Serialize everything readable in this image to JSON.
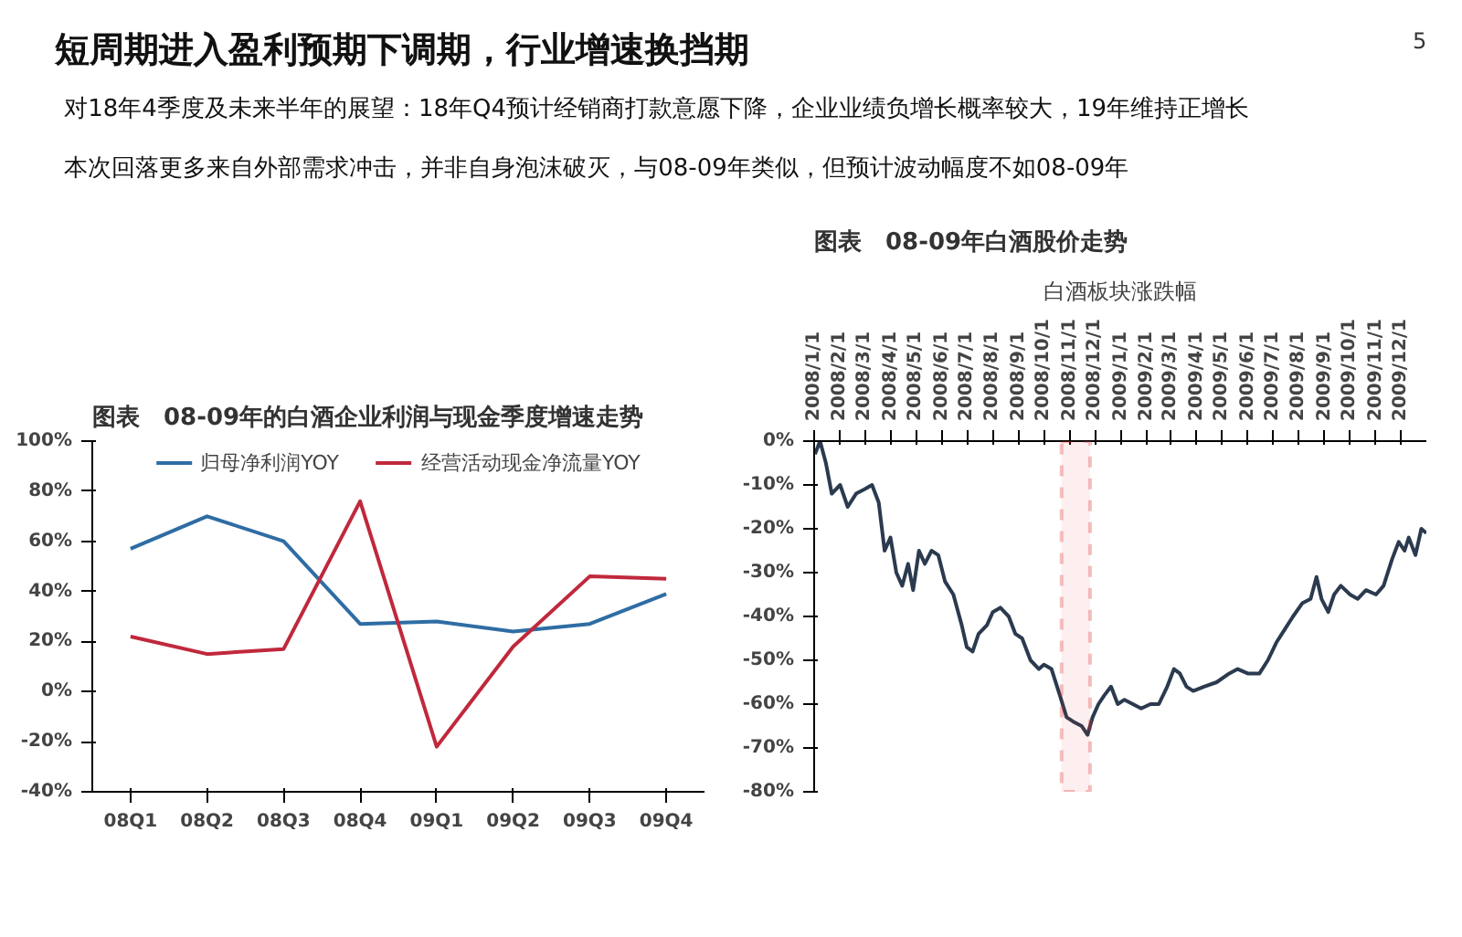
{
  "chart_data": [
    {
      "type": "other",
      "title": "短周期进入盈利预期下调期，行业增速换挡期",
      "annotations": [
        "对18年4季度及未来半年的展望：18年Q4预计经销商打款意愿下降，企业业绩负增长概率较大，19年维持正增长",
        "本次回落更多来自外部需求冲击，并非自身泡沫破灭，与08-09年类似，但预计波动幅度不如08-09年",
        "5"
      ]
    },
    {
      "type": "line",
      "title": "图表　08-09年的白酒企业利润与现金季度增速走势",
      "categories": [
        "08Q1",
        "08Q2",
        "08Q3",
        "08Q4",
        "09Q1",
        "09Q2",
        "09Q3",
        "09Q4"
      ],
      "series": [
        {
          "name": "归母净利润YOY",
          "color": "#2e6da4",
          "values": [
            57,
            70,
            60,
            27,
            28,
            24,
            27,
            39
          ]
        },
        {
          "name": "经营活动现金净流量YOY",
          "color": "#c0283c",
          "values": [
            22,
            15,
            17,
            76,
            -22,
            18,
            46,
            45
          ]
        }
      ],
      "ylim": [
        -40,
        100
      ],
      "yticks": [
        {
          "value": -40,
          "label": "-40%"
        },
        {
          "value": -20,
          "label": "-20%"
        },
        {
          "value": 0,
          "label": "0%"
        },
        {
          "value": 20,
          "label": "20%"
        },
        {
          "value": 40,
          "label": "40%"
        },
        {
          "value": 60,
          "label": "60%"
        },
        {
          "value": 80,
          "label": "80%"
        },
        {
          "value": 100,
          "label": "100%"
        }
      ],
      "legend": "top",
      "grid": false,
      "marker": "none",
      "line_style": "solid"
    },
    {
      "type": "line",
      "title": "图表　08-09年白酒股价走势",
      "subtitle": "白酒板块涨跌幅",
      "x": [
        "2008-01-02",
        "2008-01-08",
        "2008-01-15",
        "2008-01-22",
        "2008-02-01",
        "2008-02-10",
        "2008-02-20",
        "2008-03-01",
        "2008-03-10",
        "2008-03-18",
        "2008-03-25",
        "2008-04-01",
        "2008-04-08",
        "2008-04-15",
        "2008-04-22",
        "2008-04-28",
        "2008-05-05",
        "2008-05-12",
        "2008-05-20",
        "2008-05-28",
        "2008-06-05",
        "2008-06-15",
        "2008-06-25",
        "2008-07-01",
        "2008-07-08",
        "2008-07-15",
        "2008-07-25",
        "2008-08-01",
        "2008-08-10",
        "2008-08-20",
        "2008-08-28",
        "2008-09-05",
        "2008-09-15",
        "2008-09-25",
        "2008-10-01",
        "2008-10-10",
        "2008-10-20",
        "2008-10-28",
        "2008-11-05",
        "2008-11-15",
        "2008-11-22",
        "2008-11-28",
        "2008-12-05",
        "2008-12-12",
        "2008-12-20",
        "2008-12-28",
        "2009-01-05",
        "2009-01-15",
        "2009-01-25",
        "2009-02-05",
        "2009-02-15",
        "2009-02-25",
        "2009-03-05",
        "2009-03-12",
        "2009-03-20",
        "2009-03-28",
        "2009-04-10",
        "2009-04-25",
        "2009-05-10",
        "2009-05-20",
        "2009-06-01",
        "2009-06-15",
        "2009-06-25",
        "2009-07-05",
        "2009-07-15",
        "2009-07-25",
        "2009-08-05",
        "2009-08-15",
        "2009-08-22",
        "2009-08-28",
        "2009-09-05",
        "2009-09-12",
        "2009-09-20",
        "2009-10-01",
        "2009-10-10",
        "2009-10-20",
        "2009-11-01",
        "2009-11-10",
        "2009-11-20",
        "2009-11-28",
        "2009-12-05",
        "2009-12-10",
        "2009-12-18",
        "2009-12-25",
        "2009-12-31"
      ],
      "series": [
        {
          "color": "#2b3a4e",
          "values": [
            -3,
            0,
            -5,
            -12,
            -10,
            -15,
            -12,
            -11,
            -10,
            -14,
            -25,
            -22,
            -30,
            -33,
            -28,
            -34,
            -25,
            -28,
            -25,
            -26,
            -32,
            -35,
            -42,
            -47,
            -48,
            -44,
            -42,
            -39,
            -38,
            -40,
            -44,
            -45,
            -50,
            -52,
            -51,
            -52,
            -58,
            -63,
            -64,
            -65,
            -67,
            -63,
            -60,
            -58,
            -56,
            -60,
            -59,
            -60,
            -61,
            -60,
            -60,
            -56,
            -52,
            -53,
            -56,
            -57,
            -56,
            -55,
            -53,
            -52,
            -53,
            -53,
            -50,
            -46,
            -43,
            -40,
            -37,
            -36,
            -31,
            -36,
            -39,
            -35,
            -33,
            -35,
            -36,
            -34,
            -35,
            -33,
            -27,
            -23,
            -25,
            -22,
            -26,
            -20,
            -21
          ]
        }
      ],
      "xlim": [
        "2008-01-01",
        "2009-12-31"
      ],
      "xticks": [
        {
          "value": "2008-01-01",
          "label": "2008/1/1"
        },
        {
          "value": "2008-02-01",
          "label": "2008/2/1"
        },
        {
          "value": "2008-03-01",
          "label": "2008/3/1"
        },
        {
          "value": "2008-04-01",
          "label": "2008/4/1"
        },
        {
          "value": "2008-05-01",
          "label": "2008/5/1"
        },
        {
          "value": "2008-06-01",
          "label": "2008/6/1"
        },
        {
          "value": "2008-07-01",
          "label": "2008/7/1"
        },
        {
          "value": "2008-08-01",
          "label": "2008/8/1"
        },
        {
          "value": "2008-09-01",
          "label": "2008/9/1"
        },
        {
          "value": "2008-10-01",
          "label": "2008/10/1"
        },
        {
          "value": "2008-11-01",
          "label": "2008/11/1"
        },
        {
          "value": "2008-12-01",
          "label": "2008/12/1"
        },
        {
          "value": "2009-01-01",
          "label": "2009/1/1"
        },
        {
          "value": "2009-02-01",
          "label": "2009/2/1"
        },
        {
          "value": "2009-03-01",
          "label": "2009/3/1"
        },
        {
          "value": "2009-04-01",
          "label": "2009/4/1"
        },
        {
          "value": "2009-05-01",
          "label": "2009/5/1"
        },
        {
          "value": "2009-06-01",
          "label": "2009/6/1"
        },
        {
          "value": "2009-07-01",
          "label": "2009/7/1"
        },
        {
          "value": "2009-08-01",
          "label": "2009/8/1"
        },
        {
          "value": "2009-09-01",
          "label": "2009/9/1"
        },
        {
          "value": "2009-10-01",
          "label": "2009/10/1"
        },
        {
          "value": "2009-11-01",
          "label": "2009/11/1"
        },
        {
          "value": "2009-12-01",
          "label": "2009/12/1"
        }
      ],
      "ylim": [
        -80,
        0
      ],
      "yticks": [
        {
          "value": -80,
          "label": "-80%"
        },
        {
          "value": -70,
          "label": "-70%"
        },
        {
          "value": -60,
          "label": "-60%"
        },
        {
          "value": -50,
          "label": "-50%"
        },
        {
          "value": -40,
          "label": "-40%"
        },
        {
          "value": -30,
          "label": "-30%"
        },
        {
          "value": -20,
          "label": "-20%"
        },
        {
          "value": -10,
          "label": "-10%"
        },
        {
          "value": 0,
          "label": "0%"
        }
      ],
      "bands": [
        {
          "axis": "x",
          "from": "2008-10-22",
          "to": "2008-11-25",
          "color": "#e03030"
        }
      ],
      "grid": false,
      "marker": "none",
      "line_style": "solid"
    }
  ]
}
